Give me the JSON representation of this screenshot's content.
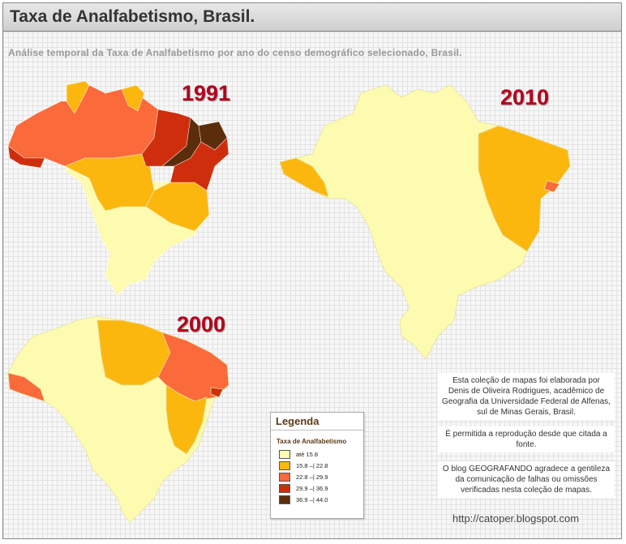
{
  "title": "Taxa de Analfabetismo, Brasil.",
  "subtitle": "Análise temporal da Taxa de Analfabetismo  por ano do censo demográfico selecionado, Brasil.",
  "maps": [
    {
      "year": "1991"
    },
    {
      "year": "2010"
    },
    {
      "year": "2000"
    }
  ],
  "legend": {
    "title": "Legenda",
    "subtitle": "Taxa de Analfabetismo",
    "classes": [
      {
        "label": "até 15.8",
        "color": "#fdfbb0"
      },
      {
        "label": "15.8 –| 22.8",
        "color": "#fcb70f"
      },
      {
        "label": "22.8 –| 29.9",
        "color": "#fb6a3a"
      },
      {
        "label": "29.9 –| 36.9",
        "color": "#cf2e0d"
      },
      {
        "label": "36.9 –| 44.0",
        "color": "#5c2d0b"
      }
    ]
  },
  "notes": [
    "Esta coleção de mapas foi elaborada por Denis de Oliveira Rodrigues, acadêmico de Geografia da Universidade Federal de Alfenas, sul de Minas Gerais, Brasil.",
    "É permitida a reprodução desde que citada a fonte.",
    "O blog GEOGRAFANDO  agradece a gentileza da comunicação de falhas ou omissões verificadas nesta coleção de mapas."
  ],
  "url": "http://catoper.blogspot.com"
}
